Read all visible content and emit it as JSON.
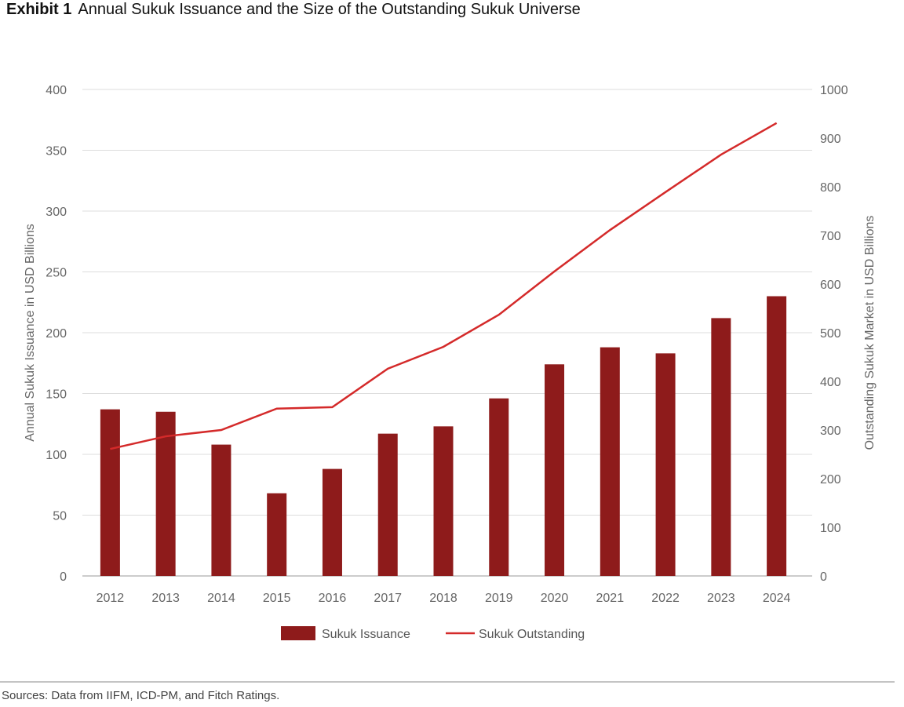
{
  "chart_data": {
    "type": "bar+line",
    "title_prefix": "Exhibit 1",
    "title": "Annual Sukuk Issuance and the Size of the Outstanding Sukuk Universe",
    "categories": [
      "2012",
      "2013",
      "2014",
      "2015",
      "2016",
      "2017",
      "2018",
      "2019",
      "2020",
      "2021",
      "2022",
      "2023",
      "2024"
    ],
    "series": [
      {
        "name": "Sukuk Issuance",
        "type": "bar",
        "axis": "left",
        "color": "#8e1b1b",
        "values": [
          137,
          135,
          108,
          68,
          88,
          117,
          123,
          146,
          174,
          188,
          183,
          212,
          230
        ]
      },
      {
        "name": "Sukuk Outstanding",
        "type": "line",
        "axis": "right",
        "color": "#d42a2a",
        "values": [
          261,
          287,
          300,
          344,
          347,
          426,
          471,
          537,
          626,
          711,
          789,
          866,
          931
        ]
      }
    ],
    "ylabel": "Annual Sukuk Issuance in USD Billions",
    "y2label": "Outstanding Sukuk Market in USD Billions",
    "ylim": [
      0,
      400
    ],
    "y2lim": [
      0,
      1000
    ],
    "yticks": [
      0,
      50,
      100,
      150,
      200,
      250,
      300,
      350,
      400
    ],
    "y2ticks": [
      0,
      100,
      200,
      300,
      400,
      500,
      600,
      700,
      800,
      900,
      1000
    ],
    "grid": true,
    "legend": "bottom-center",
    "source": "Sources: Data from IIFM, ICD-PM, and Fitch Ratings."
  }
}
